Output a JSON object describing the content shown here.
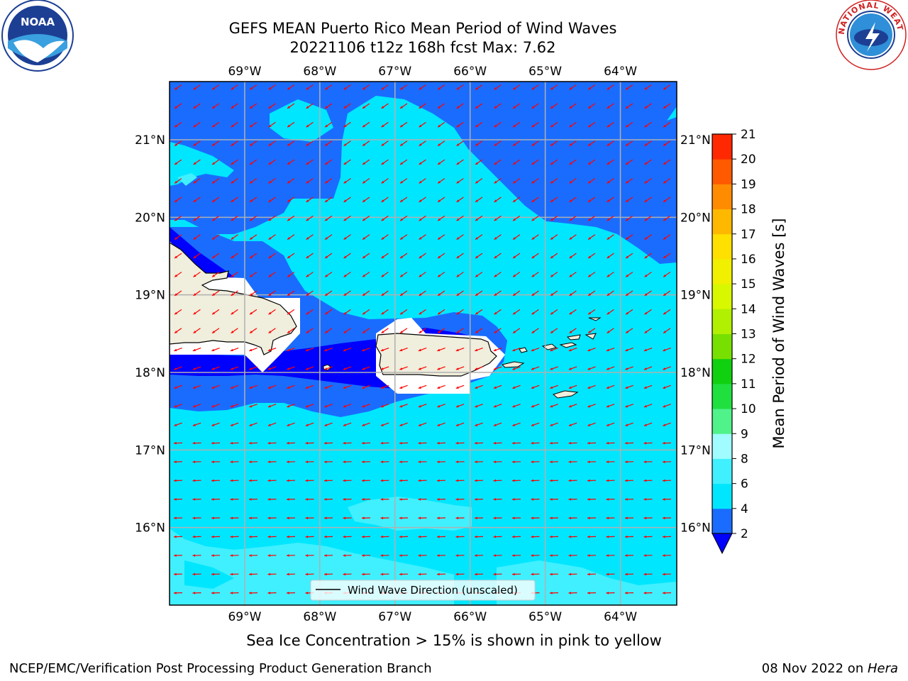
{
  "title_line1": "GEFS MEAN Puerto Rico Mean Period of Wind Waves",
  "title_line2": "20221106 t12z 168h fcst   Max: 7.62",
  "subtitle": "Sea Ice Concentration > 15% is shown in pink to yellow",
  "footer_left": "NCEP/EMC/Verification Post Processing Product Generation Branch",
  "footer_date": "08 Nov 2022 on ",
  "footer_machine": "Hera",
  "legend_label": "Wind Wave Direction (unscaled)",
  "colorbar": {
    "label": "Mean Period of Wind Waves [s]",
    "ticks": [
      "2",
      "4",
      "6",
      "8",
      "9",
      "10",
      "11",
      "12",
      "13",
      "14",
      "15",
      "16",
      "17",
      "18",
      "19",
      "20",
      "21"
    ],
    "colors": [
      "#1a6cff",
      "#00e6ff",
      "#40f0ff",
      "#a0fcff",
      "#50f28a",
      "#20e040",
      "#10d010",
      "#78e000",
      "#b0f000",
      "#d8f800",
      "#f0f000",
      "#ffe000",
      "#ffb800",
      "#ff8c00",
      "#ff5a00",
      "#ff2800"
    ],
    "extend_color": "#0000ff"
  },
  "map": {
    "lon_min": -70.0,
    "lon_max": -63.25,
    "lat_min": 15.0,
    "lat_max": 21.75,
    "lon_ticks": [
      -69,
      -68,
      -67,
      -66,
      -65,
      -64
    ],
    "lat_ticks": [
      16,
      17,
      18,
      19,
      20,
      21
    ],
    "lon_labels": [
      "69°W",
      "68°W",
      "67°W",
      "66°W",
      "65°W",
      "64°W"
    ],
    "lat_labels": [
      "16°N",
      "17°N",
      "18°N",
      "19°N",
      "20°N",
      "21°N"
    ],
    "arrow_color": "#ff0000",
    "land_color": "#f0eedc"
  },
  "logos": {
    "noaa_text": "NOAA",
    "nws_text": "NATIONAL WEATHER SERVICE"
  }
}
